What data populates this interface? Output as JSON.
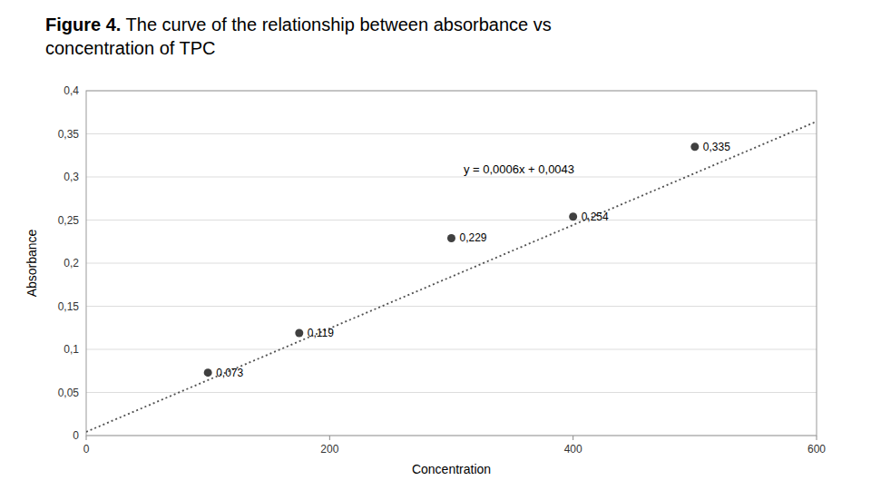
{
  "chart_data": {
    "type": "scatter",
    "title": "Figure 4. The curve of the relationship between absorbance vs concentration of TPC",
    "x_label": "Concentration",
    "y_label": "Absorbance",
    "xlim": [
      0,
      600
    ],
    "ylim": [
      0,
      0.4
    ],
    "xticks": [
      0,
      200,
      400,
      600
    ],
    "yticks": [
      0,
      {
        "value": 0.05,
        "label": "0,05"
      },
      {
        "value": 0.1,
        "label": "0,1"
      },
      {
        "value": 0.15,
        "label": "0,15"
      },
      {
        "value": 0.2,
        "label": "0,2"
      },
      {
        "value": 0.25,
        "label": "0,25"
      },
      {
        "value": 0.3,
        "label": "0,3"
      },
      {
        "value": 0.35,
        "label": "0,35"
      },
      {
        "value": 0.4,
        "label": "0,4"
      }
    ],
    "grid": "y",
    "data_labels": true,
    "series": [
      {
        "type": "scatter",
        "color": "#404040",
        "x": [
          100,
          175,
          300,
          400,
          500
        ],
        "values": [
          0.073,
          0.119,
          0.229,
          0.254,
          0.335
        ],
        "value_labels": [
          "0,073",
          "0,119",
          "0,229",
          "0,254",
          "0,335"
        ]
      },
      {
        "type": "line",
        "line_style": "dotted",
        "color": "#505050",
        "x": [
          0,
          600
        ],
        "values": [
          0.0043,
          0.3643
        ]
      }
    ],
    "annotations": [
      {
        "text": "y = 0,0006x + 0,0043",
        "x": 310,
        "y": 0.308
      }
    ]
  }
}
